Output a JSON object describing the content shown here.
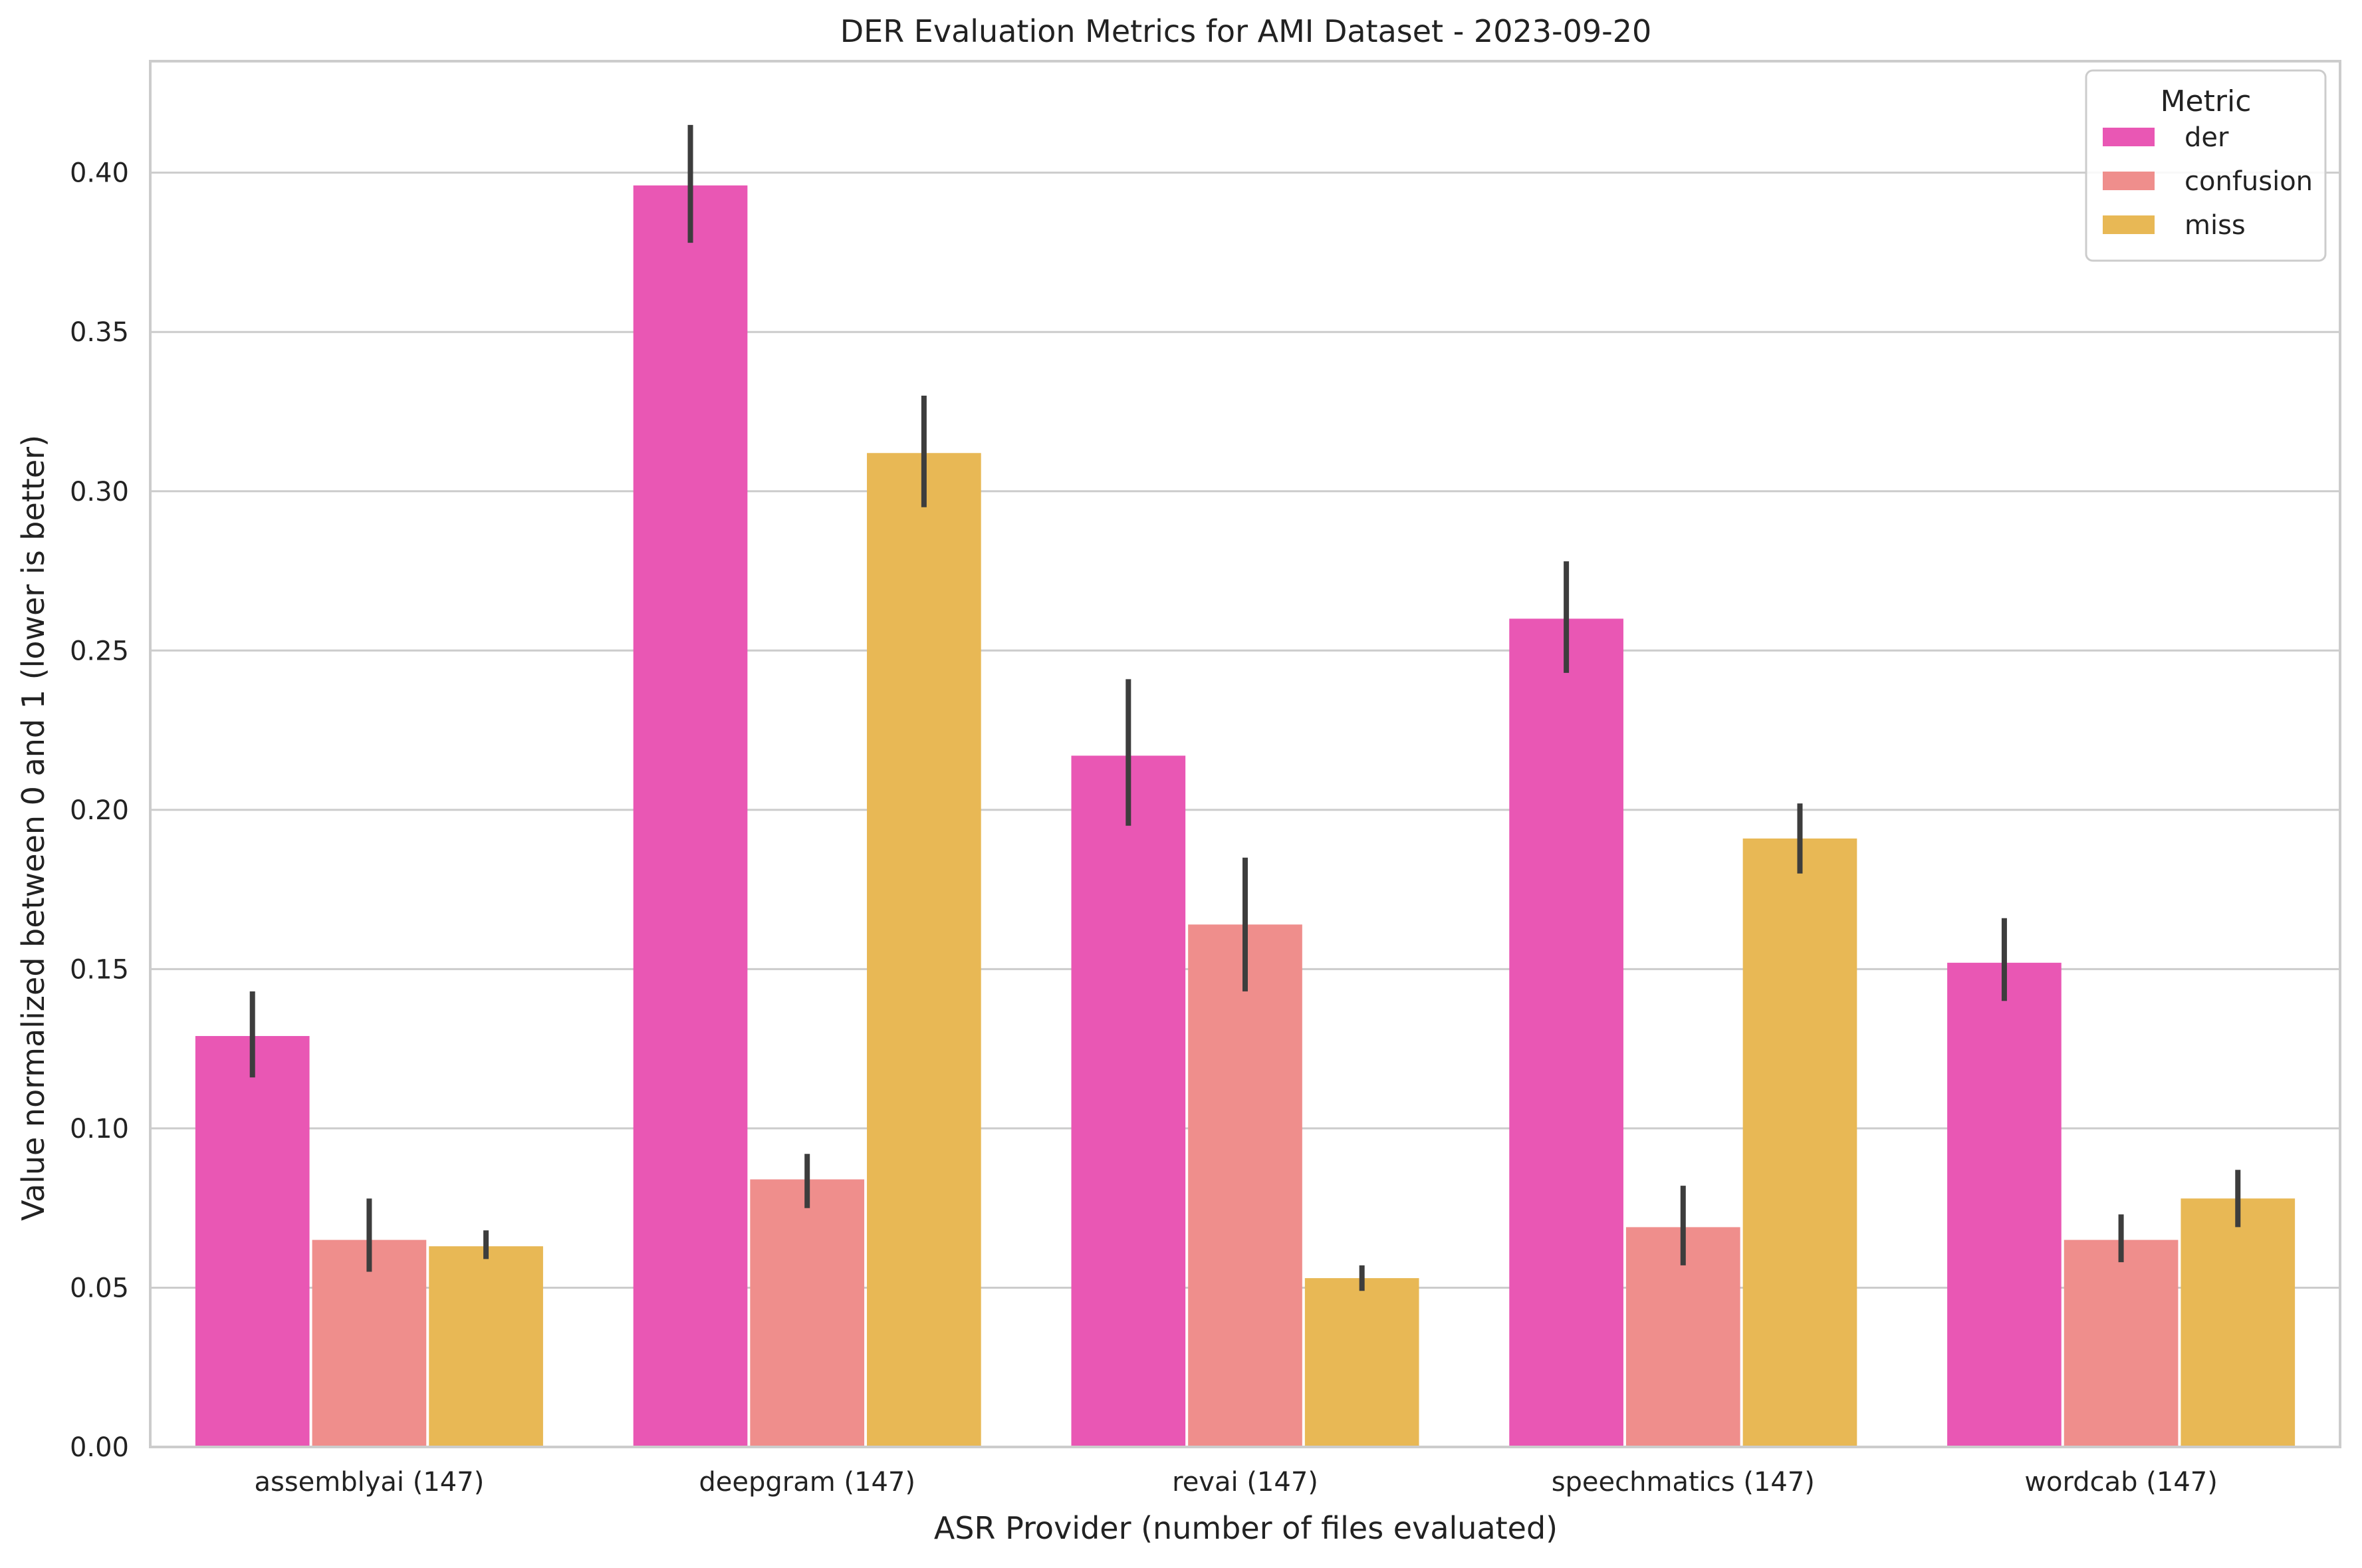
{
  "chart_data": {
    "type": "bar",
    "title": "DER Evaluation Metrics for AMI Dataset - 2023-09-20",
    "xlabel": "ASR Provider (number of files evaluated)",
    "ylabel": "Value normalized between 0 and 1 (lower is better)",
    "ylim": [
      0,
      0.435
    ],
    "yticks": [
      0.0,
      0.05,
      0.1,
      0.15,
      0.2,
      0.25,
      0.3,
      0.35,
      0.4
    ],
    "ytick_labels": [
      "0.00",
      "0.05",
      "0.10",
      "0.15",
      "0.20",
      "0.25",
      "0.30",
      "0.35",
      "0.40"
    ],
    "grid": "horizontal",
    "categories": [
      "assemblyai (147)",
      "deepgram (147)",
      "revai (147)",
      "speechmatics (147)",
      "wordcab (147)"
    ],
    "legend": {
      "title": "Metric",
      "placement": "top-right"
    },
    "series": [
      {
        "name": "der",
        "color": "#e957b4",
        "values": [
          0.129,
          0.396,
          0.217,
          0.26,
          0.152
        ],
        "error_low": [
          0.116,
          0.378,
          0.195,
          0.243,
          0.14
        ],
        "error_high": [
          0.143,
          0.415,
          0.241,
          0.278,
          0.166
        ]
      },
      {
        "name": "confusion",
        "color": "#ef8e8c",
        "values": [
          0.065,
          0.084,
          0.164,
          0.069,
          0.065
        ],
        "error_low": [
          0.055,
          0.075,
          0.143,
          0.057,
          0.058
        ],
        "error_high": [
          0.078,
          0.092,
          0.185,
          0.082,
          0.073
        ]
      },
      {
        "name": "miss",
        "color": "#e8b855",
        "values": [
          0.063,
          0.312,
          0.053,
          0.191,
          0.078
        ],
        "error_low": [
          0.059,
          0.295,
          0.049,
          0.18,
          0.069
        ],
        "error_high": [
          0.068,
          0.33,
          0.057,
          0.202,
          0.087
        ]
      }
    ]
  },
  "colors": {
    "axis_frame": "#cccccc",
    "grid": "#cccccc",
    "error_bar": "#3d3d3d",
    "text": "#222222",
    "background": "#ffffff"
  }
}
